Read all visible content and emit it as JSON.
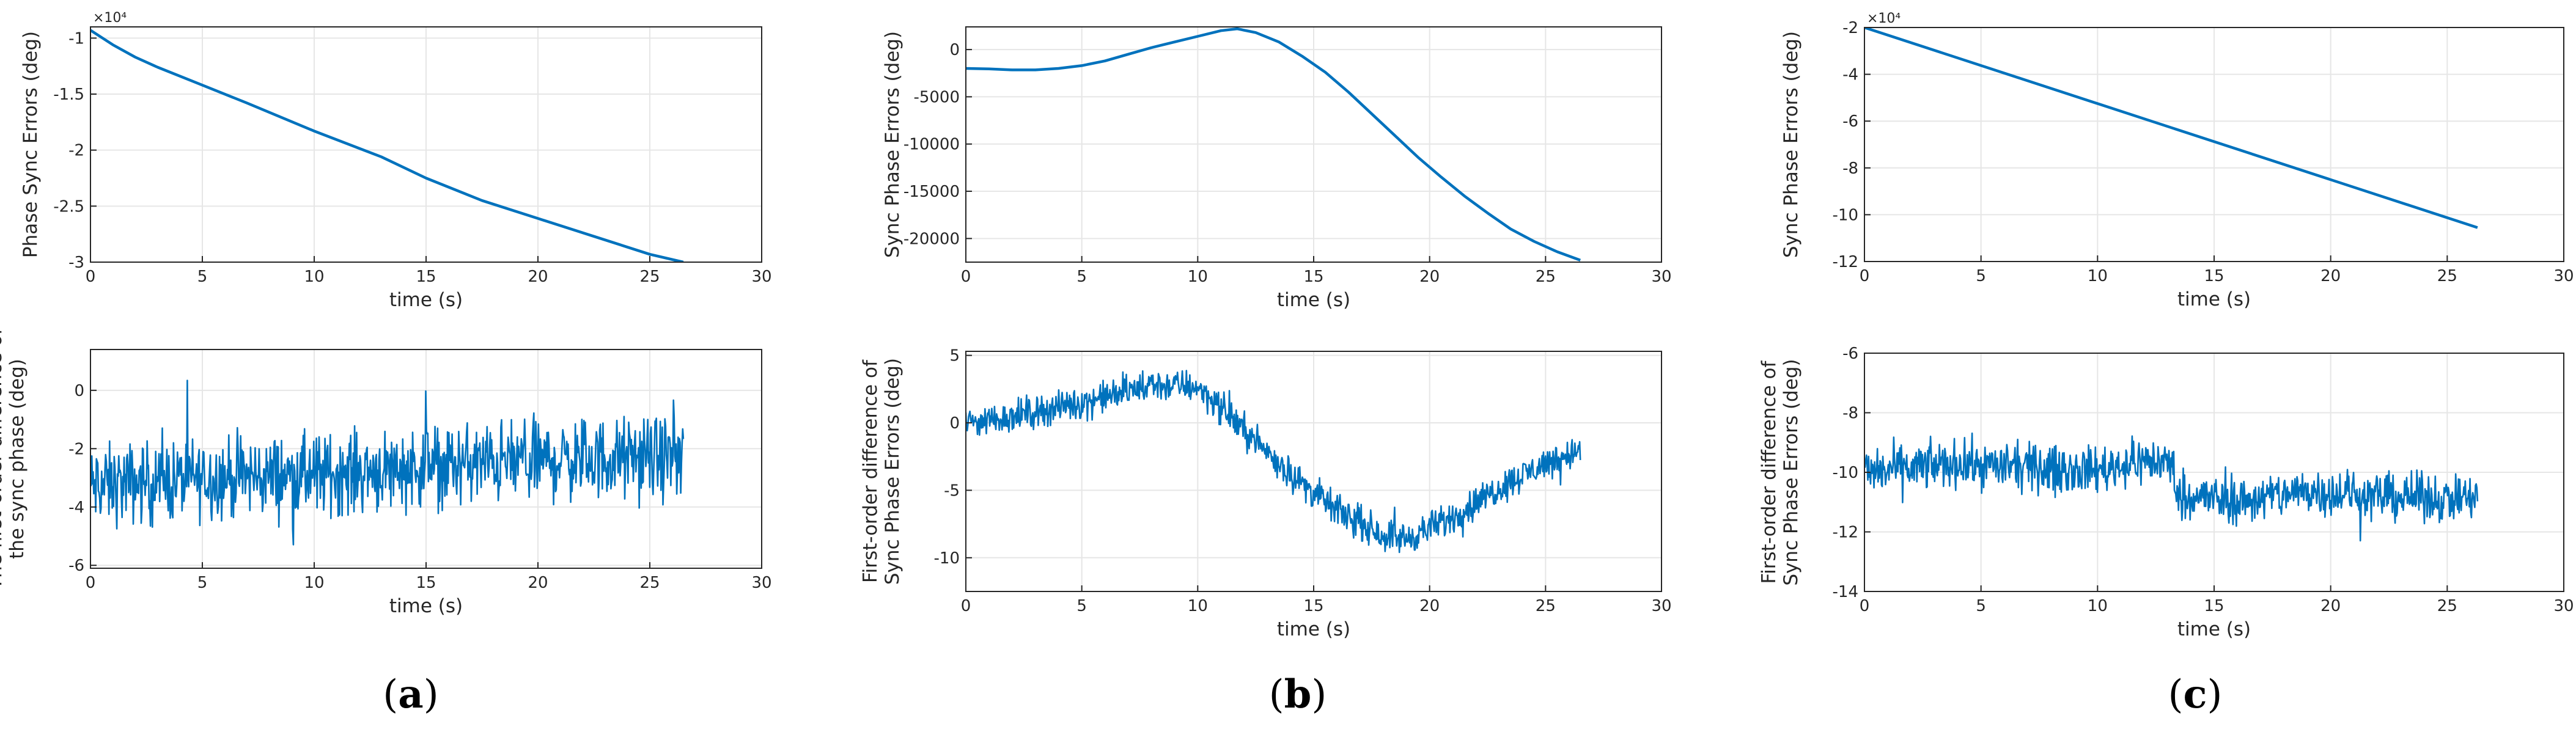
{
  "figure": {
    "panel_labels": [
      {
        "open": "(",
        "letter": "a",
        "close": ")"
      },
      {
        "open": "(",
        "letter": "b",
        "close": ")"
      },
      {
        "open": "(",
        "letter": "c",
        "close": ")"
      }
    ],
    "line_color": "#0072BD",
    "grid_color": "#e6e6e6",
    "axes_color": "#262626"
  },
  "chart_data": [
    {
      "id": "a-top",
      "type": "line",
      "xlabel": "time (s)",
      "ylabel": [
        "Phase Sync Errors (deg)"
      ],
      "multiplier": "×10⁴",
      "xlim": [
        0,
        30
      ],
      "ylim": [
        -3,
        -0.9
      ],
      "xticks": [
        0,
        5,
        10,
        15,
        20,
        25,
        30
      ],
      "yticks": [
        -3,
        -2.5,
        -2,
        -1.5,
        -1
      ],
      "yticklabels": [
        "-3",
        "-2.5",
        "-2",
        "-1.5",
        "-1"
      ],
      "series": [
        {
          "name": "a-top",
          "style": "smooth",
          "x": [
            0,
            1,
            2,
            3,
            5,
            7,
            10,
            13,
            15,
            17.5,
            20,
            22.5,
            25,
            26.5
          ],
          "y": [
            -0.93,
            -1.06,
            -1.17,
            -1.26,
            -1.42,
            -1.58,
            -1.83,
            -2.06,
            -2.25,
            -2.45,
            -2.61,
            -2.77,
            -2.93,
            -3.0
          ]
        }
      ]
    },
    {
      "id": "a-bottom",
      "type": "line",
      "xlabel": "time (s)",
      "ylabel": [
        "The first-order difference of",
        "the sync phase (deg)"
      ],
      "multiplier": "",
      "xlim": [
        0,
        30
      ],
      "ylim": [
        -6.1,
        1.4
      ],
      "xticks": [
        0,
        5,
        10,
        15,
        20,
        25,
        30
      ],
      "yticks": [
        -6,
        -4,
        -2,
        0
      ],
      "yticklabels": [
        "-6",
        "-4",
        "-2",
        "0"
      ],
      "series": [
        {
          "name": "a-bottom",
          "style": "noise",
          "x_end": 26.5,
          "points": 900,
          "trend_x": [
            0,
            5,
            10,
            15,
            20,
            26.5
          ],
          "trend_y": [
            -3.3,
            -3.0,
            -2.9,
            -2.6,
            -2.4,
            -2.3
          ],
          "amplitude": 1.5,
          "min": -6,
          "max": 1.0
        }
      ]
    },
    {
      "id": "b-top",
      "type": "line",
      "xlabel": "time (s)",
      "ylabel": [
        "Sync Phase Errors (deg)"
      ],
      "multiplier": "",
      "xlim": [
        0,
        30
      ],
      "ylim": [
        -22500,
        2400
      ],
      "xticks": [
        0,
        5,
        10,
        15,
        20,
        25,
        30
      ],
      "yticks": [
        -20000,
        -15000,
        -10000,
        -5000,
        0
      ],
      "yticklabels": [
        "-20000",
        "-15000",
        "-10000",
        "-5000",
        "0"
      ],
      "series": [
        {
          "name": "b-top",
          "style": "smooth",
          "x": [
            0,
            1,
            2,
            3,
            4,
            5,
            6,
            7,
            8,
            9,
            10,
            11,
            11.7,
            12.5,
            13.5,
            14.5,
            15.5,
            16.5,
            17.5,
            18.5,
            19.5,
            20.5,
            21.5,
            22.5,
            23.5,
            24.5,
            25.5,
            26.5
          ],
          "y": [
            -2000,
            -2050,
            -2150,
            -2150,
            -2000,
            -1700,
            -1200,
            -500,
            200,
            800,
            1400,
            2000,
            2200,
            1800,
            800,
            -700,
            -2400,
            -4500,
            -6800,
            -9100,
            -11400,
            -13500,
            -15500,
            -17300,
            -19000,
            -20300,
            -21400,
            -22300
          ]
        }
      ]
    },
    {
      "id": "b-bottom",
      "type": "line",
      "xlabel": "time (s)",
      "ylabel": [
        "First-order difference of",
        "Sync Phase Errors (deg)"
      ],
      "multiplier": "",
      "xlim": [
        0,
        30
      ],
      "ylim": [
        -12.5,
        5.3
      ],
      "xticks": [
        0,
        5,
        10,
        15,
        20,
        25,
        30
      ],
      "yticks": [
        -10,
        -5,
        0,
        5
      ],
      "yticklabels": [
        "-10",
        "-5",
        "0",
        "5"
      ],
      "series": [
        {
          "name": "b-bottom",
          "style": "noise",
          "x_end": 26.5,
          "points": 900,
          "trend_x": [
            0,
            2,
            5,
            8,
            10,
            12,
            14,
            16,
            18,
            19,
            21,
            23,
            25,
            26.5
          ],
          "trend_y": [
            0.0,
            0.5,
            1.5,
            2.8,
            2.7,
            -0.5,
            -3.8,
            -6.5,
            -8.3,
            -8.6,
            -7.0,
            -4.8,
            -3.0,
            -2.0
          ],
          "amplitude": 1.3,
          "min": -11.8,
          "max": 5.0
        }
      ]
    },
    {
      "id": "c-top",
      "type": "line",
      "xlabel": "time (s)",
      "ylabel": [
        "Sync Phase Errors (deg)"
      ],
      "multiplier": "×10⁴",
      "xlim": [
        0,
        30
      ],
      "ylim": [
        -12,
        -2
      ],
      "xticks": [
        0,
        5,
        10,
        15,
        20,
        25,
        30
      ],
      "yticks": [
        -12,
        -10,
        -8,
        -6,
        -4,
        -2
      ],
      "yticklabels": [
        "-12",
        "-10",
        "-8",
        "-6",
        "-4",
        "-2"
      ],
      "series": [
        {
          "name": "c-top",
          "style": "smooth",
          "x": [
            0,
            26.3
          ],
          "y": [
            -2.0,
            -10.55
          ]
        }
      ]
    },
    {
      "id": "c-bottom",
      "type": "line",
      "xlabel": "time (s)",
      "ylabel": [
        "First-order difference of",
        "Sync Phase Errors (deg)"
      ],
      "multiplier": "",
      "xlim": [
        0,
        30
      ],
      "ylim": [
        -14,
        -6
      ],
      "xticks": [
        0,
        5,
        10,
        15,
        20,
        25,
        30
      ],
      "yticks": [
        -14,
        -12,
        -10,
        -8,
        -6
      ],
      "yticklabels": [
        "-14",
        "-12",
        "-10",
        "-8",
        "-6"
      ],
      "series": [
        {
          "name": "c-bottom",
          "style": "noise",
          "x_end": 26.3,
          "points": 900,
          "trend_x": [
            0,
            4,
            8,
            10,
            12,
            13.2,
            13.4,
            16,
            19,
            22,
            26.3
          ],
          "trend_y": [
            -10.0,
            -9.7,
            -9.9,
            -9.9,
            -9.6,
            -9.7,
            -10.7,
            -11.0,
            -10.6,
            -10.8,
            -10.9
          ],
          "amplitude": 0.85,
          "min": -13.4,
          "max": -7.0
        }
      ]
    }
  ]
}
